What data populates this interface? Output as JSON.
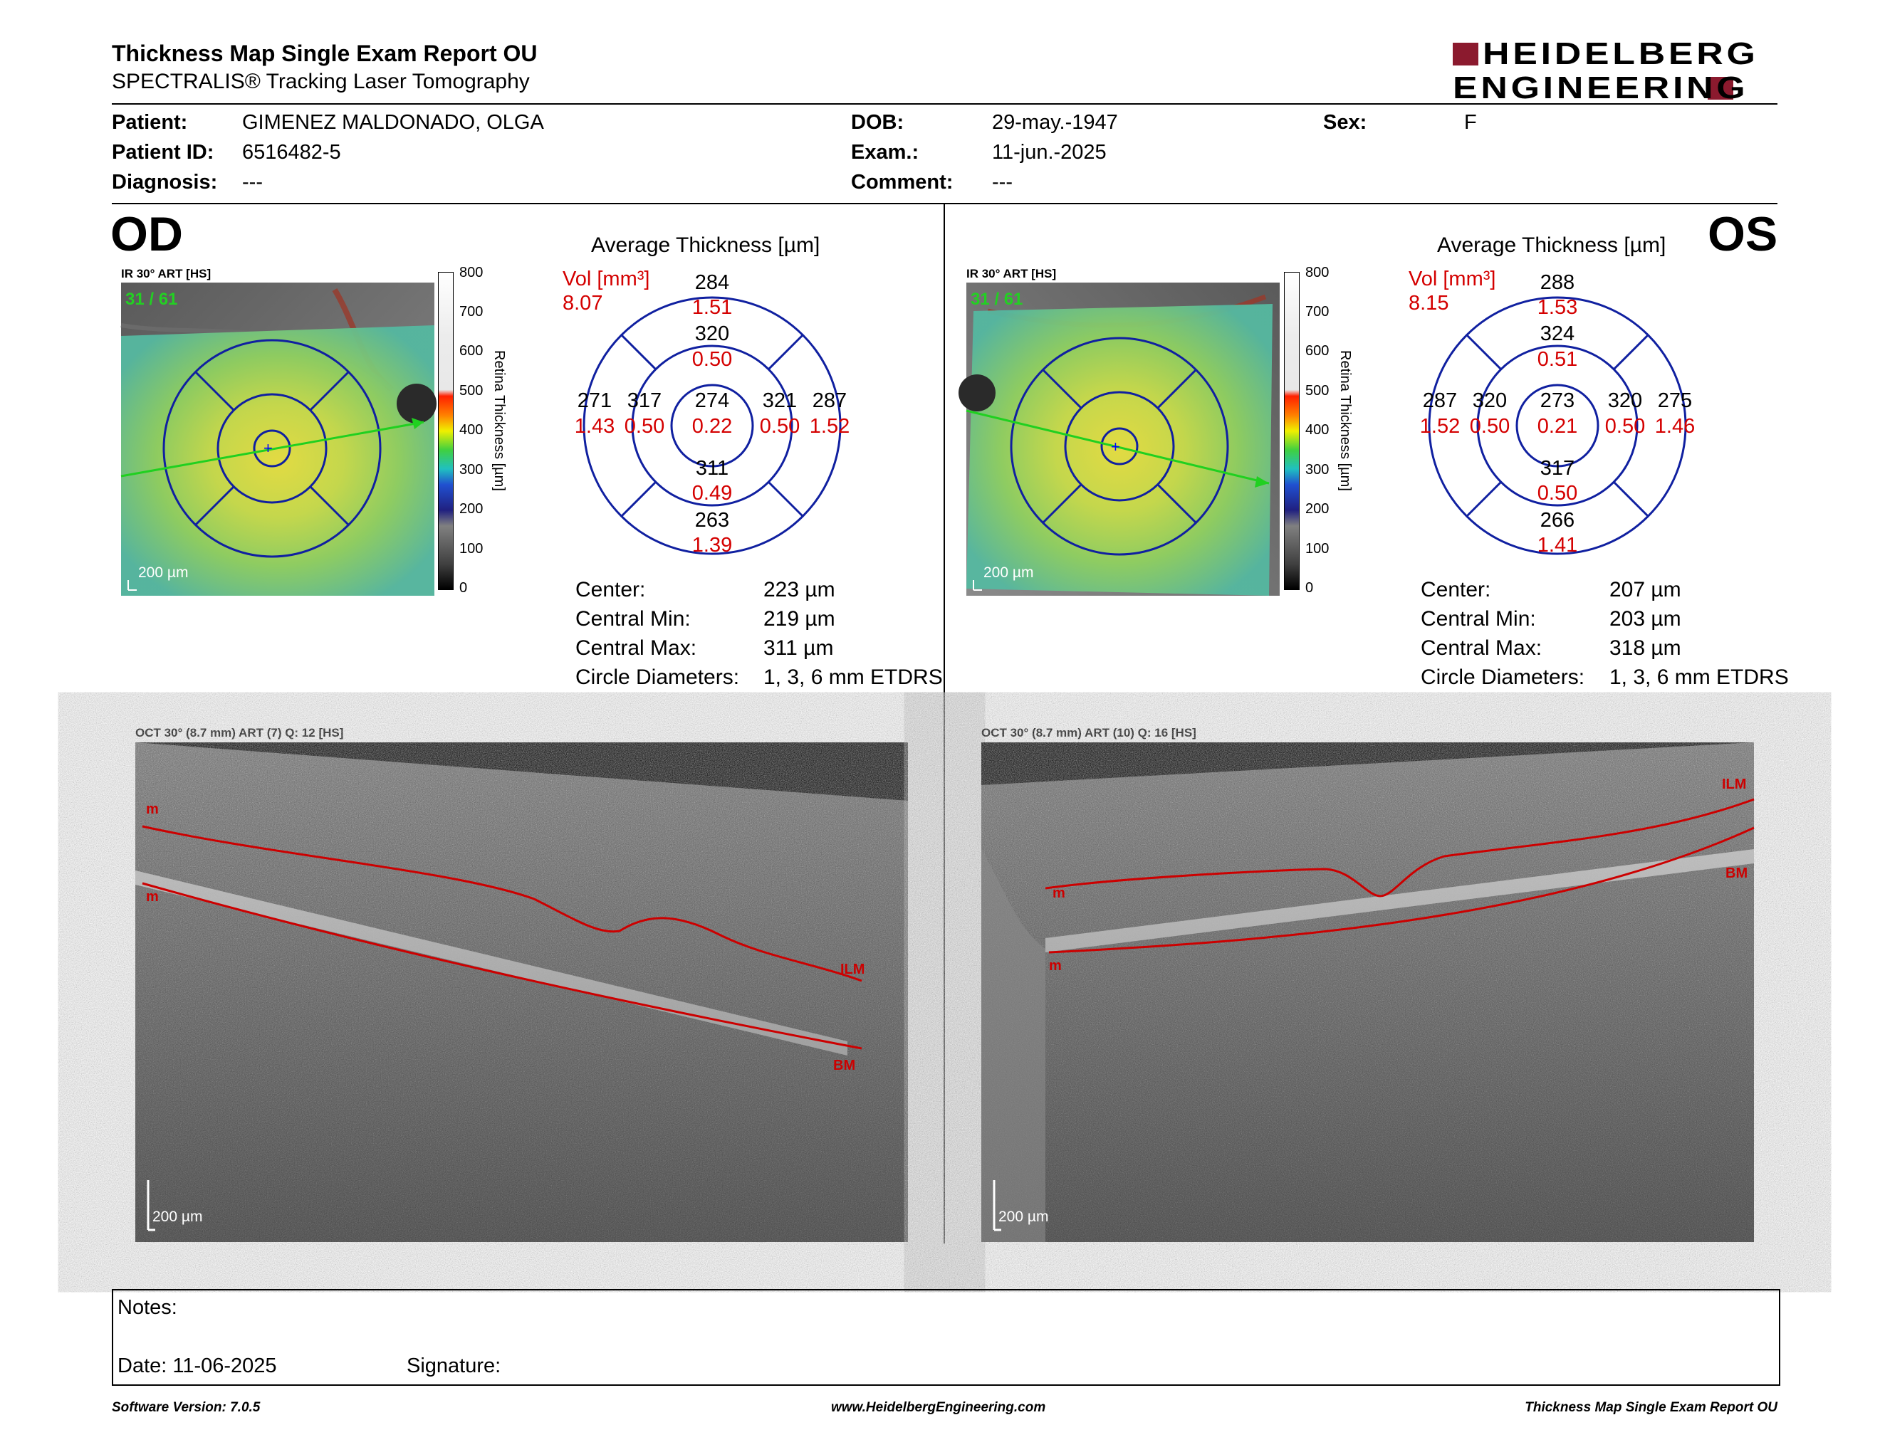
{
  "report": {
    "title": "Thickness Map Single Exam Report OU",
    "subtitle": "SPECTRALIS® Tracking Laser Tomography",
    "brand_line1": "HEIDELBERG",
    "brand_line2": "ENGINEERING",
    "brand_color": "#8b1a2e"
  },
  "patient": {
    "patient_label": "Patient:",
    "patient_value": "GIMENEZ MALDONADO, OLGA",
    "id_label": "Patient ID:",
    "id_value": "6516482-5",
    "diagnosis_label": "Diagnosis:",
    "diagnosis_value": "---",
    "dob_label": "DOB:",
    "dob_value": "29-may.-1947",
    "exam_label": "Exam.:",
    "exam_value": "11-jun.-2025",
    "comment_label": "Comment:",
    "comment_value": "---",
    "sex_label": "Sex:",
    "sex_value": "F"
  },
  "scale": {
    "ticks": [
      "800",
      "700",
      "600",
      "500",
      "400",
      "300",
      "200",
      "100",
      "0"
    ],
    "title": "Retina Thickness [µm]"
  },
  "od": {
    "eye": "OD",
    "ir_label": "IR 30° ART [HS]",
    "frame": "31 / 61",
    "ir_scalebar": "200 µm",
    "avg_title": "Average Thickness [µm]",
    "vol_label": "Vol [mm³]",
    "vol_total": "8.07",
    "etdrs": {
      "center": [
        "274",
        "0.22"
      ],
      "inner_sup": [
        "320",
        "0.50"
      ],
      "inner_inf": [
        "311",
        "0.49"
      ],
      "inner_left": [
        "317",
        "0.50"
      ],
      "inner_right": [
        "321",
        "0.50"
      ],
      "outer_sup": [
        "284",
        "1.51"
      ],
      "outer_inf": [
        "263",
        "1.39"
      ],
      "outer_left": [
        "271",
        "1.43"
      ],
      "outer_right": [
        "287",
        "1.52"
      ]
    },
    "stats": [
      {
        "label": "Center:",
        "value": "223 µm"
      },
      {
        "label": "Central Min:",
        "value": "219 µm"
      },
      {
        "label": "Central Max:",
        "value": "311 µm"
      },
      {
        "label": "Circle Diameters:",
        "value": "1, 3, 6 mm ETDRS"
      }
    ],
    "oct_label": "OCT 30° (8.7 mm) ART (7) Q: 12 [HS]",
    "oct_scalebar": "200 µm",
    "layer_ilm": "ILM",
    "layer_bm": "BM"
  },
  "os": {
    "eye": "OS",
    "ir_label": "IR 30° ART [HS]",
    "frame": "31 / 61",
    "ir_scalebar": "200 µm",
    "avg_title": "Average Thickness [µm]",
    "vol_label": "Vol [mm³]",
    "vol_total": "8.15",
    "etdrs": {
      "center": [
        "273",
        "0.21"
      ],
      "inner_sup": [
        "324",
        "0.51"
      ],
      "inner_inf": [
        "317",
        "0.50"
      ],
      "inner_left": [
        "320",
        "0.50"
      ],
      "inner_right": [
        "320",
        "0.50"
      ],
      "outer_sup": [
        "288",
        "1.53"
      ],
      "outer_inf": [
        "266",
        "1.41"
      ],
      "outer_left": [
        "287",
        "1.52"
      ],
      "outer_right": [
        "275",
        "1.46"
      ]
    },
    "stats": [
      {
        "label": "Center:",
        "value": "207 µm"
      },
      {
        "label": "Central Min:",
        "value": "203 µm"
      },
      {
        "label": "Central Max:",
        "value": "318 µm"
      },
      {
        "label": "Circle Diameters:",
        "value": "1, 3, 6 mm ETDRS"
      }
    ],
    "oct_label": "OCT 30° (8.7 mm) ART (10) Q: 16 [HS]",
    "oct_scalebar": "200 µm",
    "layer_ilm": "ILM",
    "layer_bm": "BM"
  },
  "notes": {
    "notes_label": "Notes:",
    "date_label": "Date: 11-06-2025",
    "signature_label": "Signature:"
  },
  "footer": {
    "software": "Software Version: 7.0.5",
    "website": "www.HeidelbergEngineering.com",
    "report_name": "Thickness Map Single Exam Report OU"
  }
}
